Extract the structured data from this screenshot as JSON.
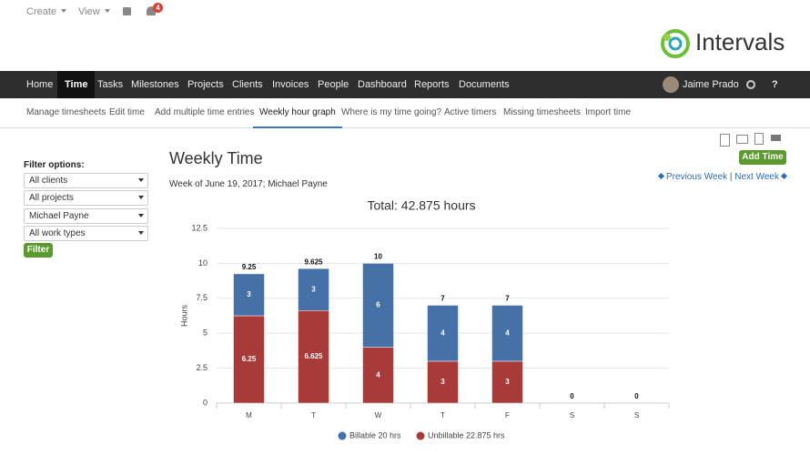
{
  "top": {
    "create": "Create",
    "view": "View",
    "notifications": 4,
    "logo": "Intervals"
  },
  "nav": {
    "items": [
      "Home",
      "Time",
      "Tasks",
      "Milestones",
      "Projects",
      "Clients",
      "Invoices",
      "People",
      "Dashboard",
      "Reports",
      "Documents"
    ],
    "user": "Jaime Prado",
    "help": "?"
  },
  "subnav": {
    "items": [
      "Manage timesheets",
      "Edit time",
      "Add multiple time entries",
      "Weekly hour graph",
      "Where is my time going?",
      "Active timers",
      "Missing timesheets",
      "Import time"
    ]
  },
  "filter": {
    "title": "Filter options:",
    "selects": [
      "All clients",
      "All projects",
      "Michael Payne",
      "All work types"
    ],
    "button": "Filter"
  },
  "content": {
    "heading": "Weekly Time",
    "subheading": "Week of June 19, 2017; Michael Payne",
    "add_time": "Add Time",
    "previous_week": "Previous Week",
    "separator": "|",
    "next_week": "Next Week"
  },
  "chart_data": {
    "type": "stacked_bar",
    "title": "Total: 42.875 hours",
    "y_label": "Hours",
    "categories": [
      "M",
      "T",
      "W",
      "T",
      "F",
      "S",
      "S"
    ],
    "series": [
      {
        "name": "Billable 20 hrs",
        "color": "#4570a8",
        "values": [
          3,
          3,
          6,
          4,
          4,
          0,
          0
        ]
      },
      {
        "name": "Unbillable 22.875 hrs",
        "color": "#a83a3a",
        "values": [
          6.25,
          6.625,
          4,
          3,
          3,
          0,
          0
        ]
      }
    ],
    "totals": [
      9.25,
      9.625,
      10,
      7,
      7,
      0,
      0
    ],
    "ylim": [
      0,
      12.5
    ],
    "yticks": [
      0,
      2.5,
      5,
      7.5,
      10,
      12.5
    ],
    "grid": true
  }
}
